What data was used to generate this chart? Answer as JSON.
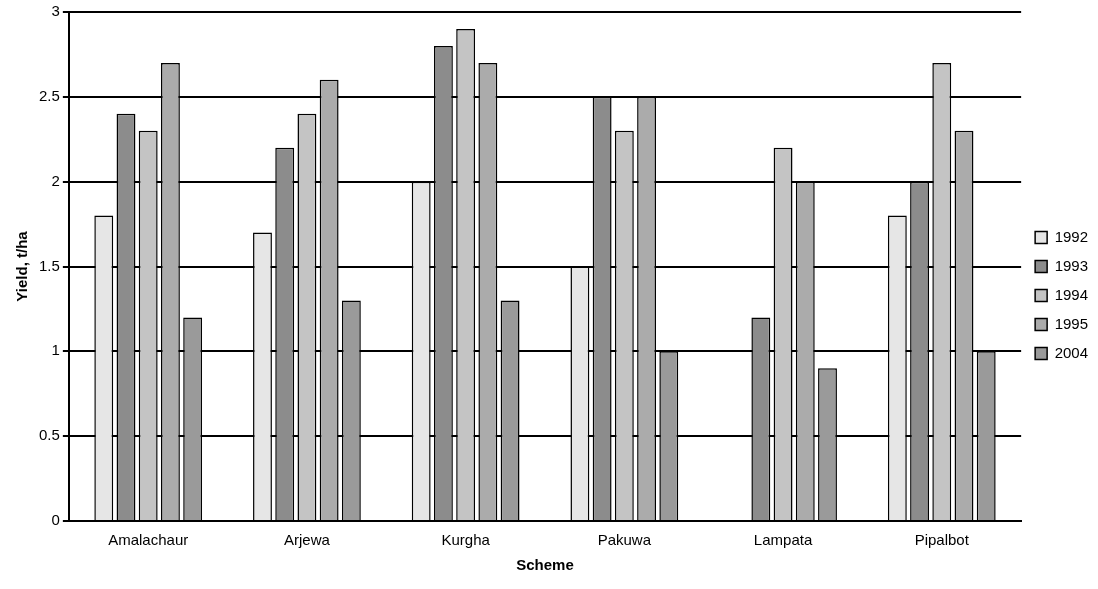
{
  "chart_data": {
    "type": "bar",
    "xlabel": "Scheme",
    "ylabel": "Yield, t/ha",
    "categories": [
      "Amalachaur",
      "Arjewa",
      "Kurgha",
      "Pakuwa",
      "Lampata",
      "Pipalbot"
    ],
    "series": [
      {
        "name": "1992",
        "color": "#e6e6e6",
        "values": [
          1.8,
          1.7,
          2.0,
          1.5,
          null,
          1.8
        ]
      },
      {
        "name": "1993",
        "color": "#8c8c8c",
        "values": [
          2.4,
          2.2,
          2.8,
          2.5,
          1.2,
          2.0
        ]
      },
      {
        "name": "1994",
        "color": "#c4c4c4",
        "values": [
          2.3,
          2.4,
          2.9,
          2.3,
          2.2,
          2.7
        ]
      },
      {
        "name": "1995",
        "color": "#ababab",
        "values": [
          2.7,
          2.6,
          2.7,
          2.5,
          2.0,
          2.3
        ]
      },
      {
        "name": "2004",
        "color": "#9a9a9a",
        "values": [
          1.2,
          1.3,
          1.3,
          1.0,
          0.9,
          1.0
        ]
      }
    ],
    "ylim": [
      0,
      3
    ],
    "yticks": [
      0,
      0.5,
      1,
      1.5,
      2,
      2.5,
      3
    ],
    "grid": "y",
    "legend": "right"
  }
}
